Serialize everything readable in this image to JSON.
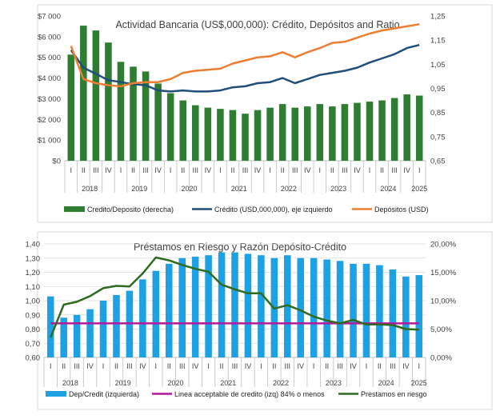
{
  "chart_data": [
    {
      "type": "bar+line",
      "title": "Actividad Bancaria (US$,000,000): Crédito, Depósitos and Ratio",
      "quarters": [
        "I",
        "II",
        "III",
        "IV",
        "I",
        "II",
        "III",
        "IV",
        "I",
        "II",
        "III",
        "IV",
        "I",
        "II",
        "III",
        "IV",
        "I",
        "II",
        "III",
        "IV",
        "I",
        "II",
        "III",
        "IV",
        "I",
        "II",
        "III",
        "IV",
        "I"
      ],
      "years": [
        {
          "label": "2018",
          "start": 0,
          "end": 3
        },
        {
          "label": "2019",
          "start": 4,
          "end": 7
        },
        {
          "label": "2020",
          "start": 8,
          "end": 11
        },
        {
          "label": "2021",
          "start": 12,
          "end": 15
        },
        {
          "label": "2022",
          "start": 16,
          "end": 19
        },
        {
          "label": "2023",
          "start": 20,
          "end": 23
        },
        {
          "label": "2024",
          "start": 24,
          "end": 27
        },
        {
          "label": "2025",
          "start": 28,
          "end": 28
        }
      ],
      "left_axis": {
        "min": 0,
        "max": 7000,
        "step": 1000,
        "labels": [
          "$0",
          "$1 000",
          "$2 000",
          "$3 000",
          "$4 000",
          "$5 000",
          "$6 000",
          "$7 000"
        ]
      },
      "right_axis": {
        "min": 0.65,
        "max": 1.25,
        "step": 0.1,
        "labels": [
          "0,65",
          "0,75",
          "0,85",
          "0,95",
          "1,05",
          "1,15",
          "1,25"
        ]
      },
      "series": [
        {
          "name": "Credito/Deposito (derecha)",
          "kind": "bar",
          "axis": "right",
          "color": "#2e7d32",
          "values": [
            1.09,
            1.21,
            1.19,
            1.14,
            1.06,
            1.04,
            1.02,
            0.97,
            0.93,
            0.9,
            0.88,
            0.87,
            0.865,
            0.86,
            0.845,
            0.86,
            0.87,
            0.885,
            0.87,
            0.875,
            0.885,
            0.875,
            0.885,
            0.89,
            0.895,
            0.9,
            0.91,
            0.925,
            0.92
          ]
        },
        {
          "name": "Crédito  (USD,000,000), eje izquierdo",
          "kind": "line",
          "axis": "left",
          "color": "#1f4e79",
          "values": [
            5350,
            4500,
            4200,
            3900,
            3800,
            3700,
            3650,
            3400,
            3350,
            3400,
            3350,
            3350,
            3400,
            3550,
            3600,
            3750,
            3800,
            4000,
            3750,
            3950,
            4150,
            4250,
            4350,
            4500,
            4750,
            4950,
            5150,
            5450,
            5600
          ]
        },
        {
          "name": "Depósitos (USD)",
          "kind": "line",
          "axis": "left",
          "color": "#ed7d31",
          "values": [
            5550,
            3950,
            3750,
            3650,
            3600,
            3750,
            3800,
            3800,
            3950,
            4250,
            4350,
            4400,
            4450,
            4700,
            4850,
            5000,
            5050,
            5250,
            5000,
            5250,
            5450,
            5700,
            5750,
            5950,
            6150,
            6300,
            6400,
            6500,
            6600
          ]
        }
      ]
    },
    {
      "type": "bar+line",
      "title": "Préstamos en Riesgo y Razón Depósito-Crédito",
      "quarters": [
        "I",
        "II",
        "III",
        "IV",
        "I",
        "II",
        "III",
        "IV",
        "I",
        "II",
        "III",
        "IV",
        "I",
        "II",
        "III",
        "IV",
        "I",
        "II",
        "III",
        "IV",
        "I",
        "II",
        "III",
        "IV",
        "I",
        "II",
        "III",
        "IV",
        "I"
      ],
      "years": [
        {
          "label": "2018",
          "start": 0,
          "end": 3
        },
        {
          "label": "2019",
          "start": 4,
          "end": 7
        },
        {
          "label": "2020",
          "start": 8,
          "end": 11
        },
        {
          "label": "2021",
          "start": 12,
          "end": 15
        },
        {
          "label": "2022",
          "start": 16,
          "end": 19
        },
        {
          "label": "2023",
          "start": 20,
          "end": 23
        },
        {
          "label": "2024",
          "start": 24,
          "end": 27
        },
        {
          "label": "2025",
          "start": 28,
          "end": 28
        }
      ],
      "left_axis": {
        "min": 0.6,
        "max": 1.4,
        "step": 0.1,
        "labels": [
          "0,60",
          "0,70",
          "0,80",
          "0,90",
          "1,00",
          "1,10",
          "1,20",
          "1,30",
          "1,40"
        ]
      },
      "right_axis": {
        "min": 0,
        "max": 20,
        "step": 5,
        "labels": [
          "0,00%",
          "5,00%",
          "10,00%",
          "15,00%",
          "20,00%"
        ]
      },
      "series": [
        {
          "name": "Dep/Credit (izquierda)",
          "kind": "bar",
          "axis": "left",
          "color": "#1da1e2",
          "values": [
            1.03,
            0.88,
            0.9,
            0.94,
            1.0,
            1.04,
            1.07,
            1.15,
            1.21,
            1.26,
            1.3,
            1.31,
            1.32,
            1.34,
            1.34,
            1.33,
            1.32,
            1.3,
            1.32,
            1.3,
            1.3,
            1.29,
            1.28,
            1.26,
            1.26,
            1.25,
            1.22,
            1.17,
            1.18
          ]
        },
        {
          "name": "Linea acceptable de credito (izq) 84% o menos",
          "kind": "line",
          "axis": "left",
          "color": "#b5179e",
          "values": [
            0.84,
            0.84,
            0.84,
            0.84,
            0.84,
            0.84,
            0.84,
            0.84,
            0.84,
            0.84,
            0.84,
            0.84,
            0.84,
            0.84,
            0.84,
            0.84,
            0.84,
            0.84,
            0.84,
            0.84,
            0.84,
            0.84,
            0.84,
            0.84,
            0.84,
            0.84,
            0.84,
            0.84,
            0.84
          ]
        },
        {
          "name": "Prestamos en riesgo",
          "kind": "line",
          "axis": "right",
          "color": "#2e6b1f",
          "values": [
            3.5,
            9.3,
            9.8,
            10.8,
            12.2,
            12.6,
            12.5,
            14.8,
            17.6,
            17.1,
            16.3,
            15.6,
            15.1,
            12.8,
            12.0,
            11.3,
            11.3,
            8.6,
            9.2,
            8.3,
            7.2,
            6.5,
            6.0,
            6.6,
            5.8,
            5.8,
            5.7,
            5.0,
            4.9
          ]
        }
      ]
    }
  ]
}
